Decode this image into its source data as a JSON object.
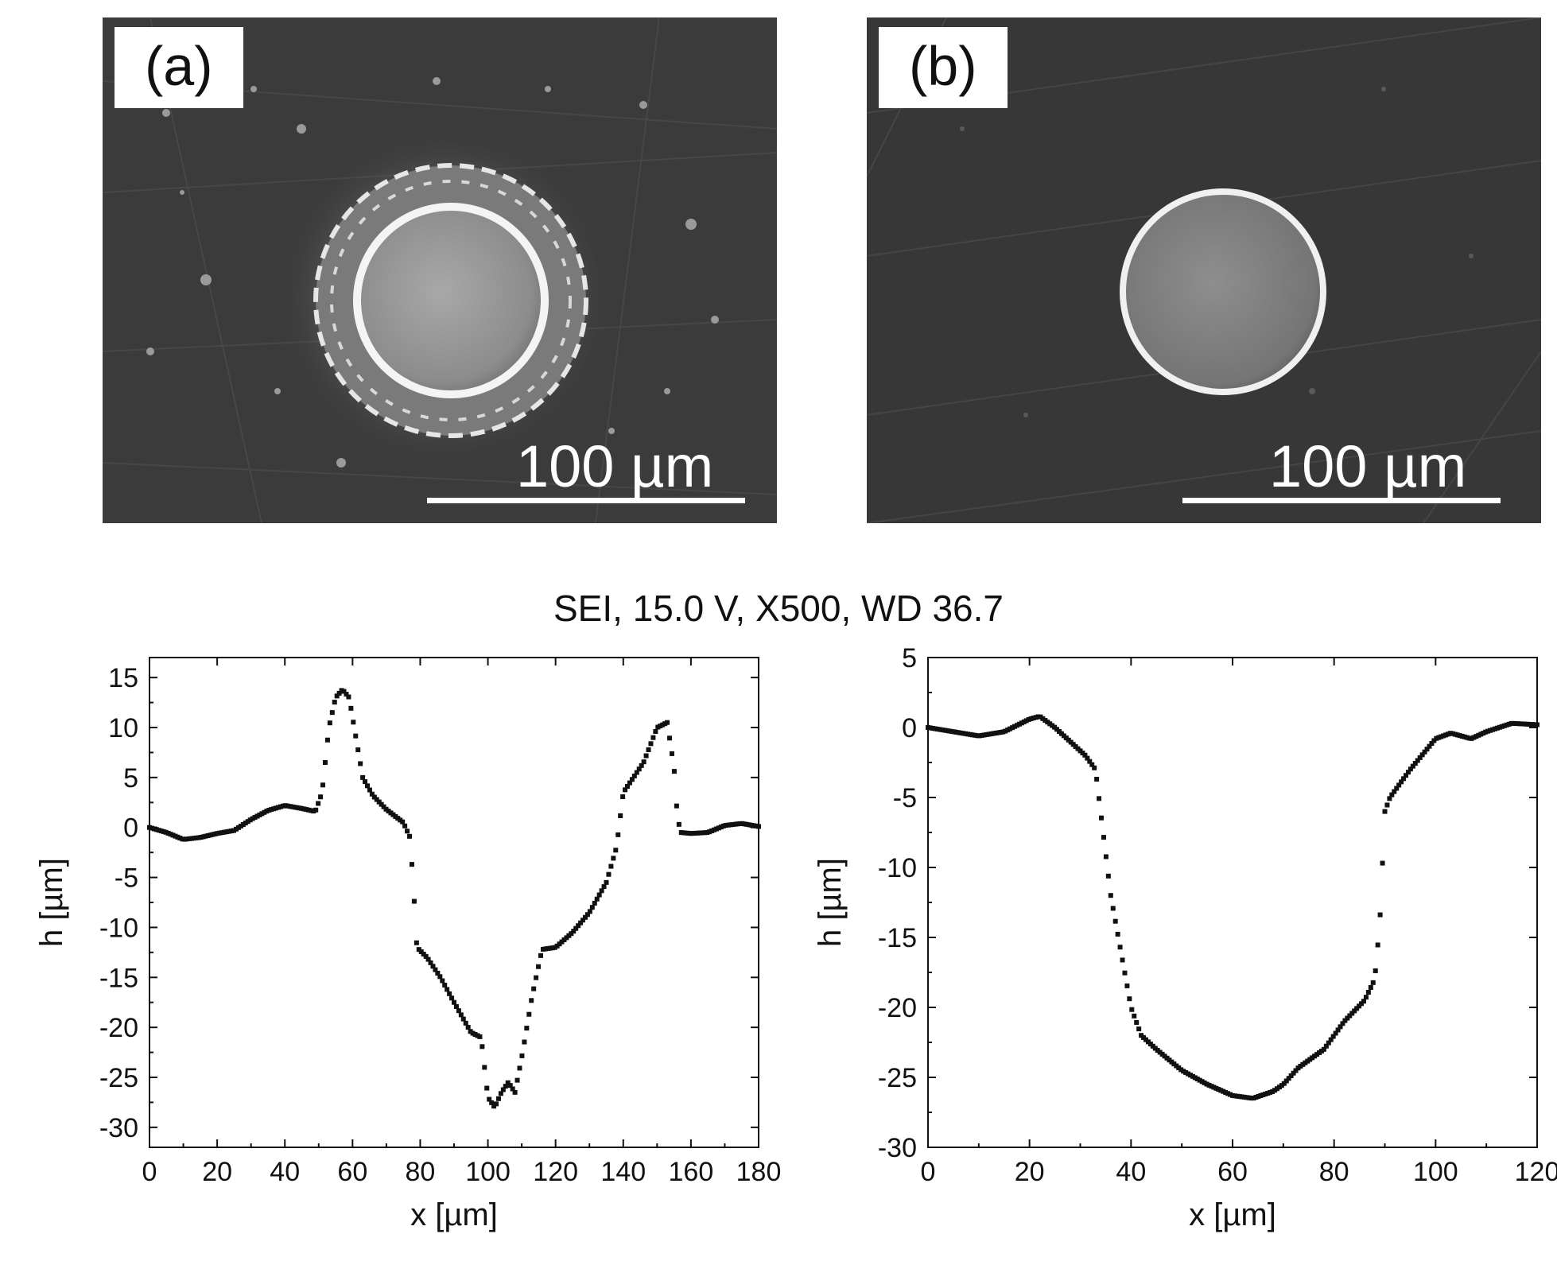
{
  "panels": {
    "a": {
      "label": "(a)",
      "scale_text": "100 µm"
    },
    "b": {
      "label": "(b)",
      "scale_text": "100 µm"
    }
  },
  "caption": "SEI, 15.0 V, X500, WD 36.7",
  "colors": {
    "marker": "#111111",
    "axis": "#111111",
    "sem_background": "#3a3a3a"
  },
  "chart_data": [
    {
      "type": "scatter",
      "title": "",
      "xlabel": "x [µm]",
      "ylabel": "h [µm]",
      "xlim": [
        0,
        180
      ],
      "ylim": [
        -32,
        17
      ],
      "xticks": [
        0,
        20,
        40,
        60,
        80,
        100,
        120,
        140,
        160,
        180
      ],
      "yticks": [
        15,
        10,
        5,
        0,
        -5,
        -10,
        -15,
        -20,
        -25,
        -30
      ],
      "profile": [
        [
          0,
          0
        ],
        [
          5,
          -0.5
        ],
        [
          10,
          -1.2
        ],
        [
          15,
          -1
        ],
        [
          20,
          -0.6
        ],
        [
          25,
          -0.3
        ],
        [
          30,
          0.8
        ],
        [
          35,
          1.7
        ],
        [
          40,
          2.2
        ],
        [
          45,
          1.9
        ],
        [
          49,
          1.6
        ],
        [
          51,
          3.5
        ],
        [
          53,
          10
        ],
        [
          55,
          13
        ],
        [
          57,
          13.8
        ],
        [
          59,
          13
        ],
        [
          61,
          9
        ],
        [
          63,
          5
        ],
        [
          66,
          3.2
        ],
        [
          70,
          1.8
        ],
        [
          75,
          0.5
        ],
        [
          77,
          -1
        ],
        [
          78,
          -6
        ],
        [
          79,
          -12
        ],
        [
          82,
          -13
        ],
        [
          86,
          -15
        ],
        [
          90,
          -17.5
        ],
        [
          95,
          -20.5
        ],
        [
          98,
          -21
        ],
        [
          100,
          -27
        ],
        [
          102,
          -28
        ],
        [
          104,
          -26.5
        ],
        [
          106,
          -25.5
        ],
        [
          108,
          -26.5
        ],
        [
          110,
          -23
        ],
        [
          113,
          -17
        ],
        [
          116,
          -12.2
        ],
        [
          120,
          -12
        ],
        [
          125,
          -10.5
        ],
        [
          130,
          -8.5
        ],
        [
          135,
          -5.5
        ],
        [
          138,
          -2
        ],
        [
          140,
          3.5
        ],
        [
          143,
          5
        ],
        [
          146,
          6.5
        ],
        [
          150,
          10
        ],
        [
          153,
          10.5
        ],
        [
          155,
          6
        ],
        [
          156,
          1
        ],
        [
          157,
          -0.5
        ],
        [
          160,
          -0.6
        ],
        [
          165,
          -0.5
        ],
        [
          170,
          0.2
        ],
        [
          175,
          0.4
        ],
        [
          180,
          0.1
        ]
      ]
    },
    {
      "type": "scatter",
      "title": "",
      "xlabel": "x [µm]",
      "ylabel": "h [µm]",
      "xlim": [
        0,
        120
      ],
      "ylim": [
        -30,
        5
      ],
      "xticks": [
        0,
        20,
        40,
        60,
        80,
        100,
        120
      ],
      "yticks": [
        5,
        0,
        -5,
        -10,
        -15,
        -20,
        -25,
        -30
      ],
      "profile": [
        [
          0,
          0
        ],
        [
          5,
          -0.3
        ],
        [
          10,
          -0.6
        ],
        [
          15,
          -0.3
        ],
        [
          20,
          0.6
        ],
        [
          22,
          0.8
        ],
        [
          25,
          0
        ],
        [
          28,
          -1
        ],
        [
          31,
          -2
        ],
        [
          33,
          -3
        ],
        [
          34,
          -6
        ],
        [
          36,
          -12
        ],
        [
          38,
          -16
        ],
        [
          40,
          -20
        ],
        [
          42,
          -22
        ],
        [
          45,
          -23
        ],
        [
          50,
          -24.5
        ],
        [
          55,
          -25.5
        ],
        [
          60,
          -26.3
        ],
        [
          64,
          -26.5
        ],
        [
          68,
          -26
        ],
        [
          70,
          -25.5
        ],
        [
          73,
          -24.3
        ],
        [
          78,
          -23
        ],
        [
          82,
          -21
        ],
        [
          86,
          -19.5
        ],
        [
          88,
          -18
        ],
        [
          89,
          -14
        ],
        [
          89.5,
          -10
        ],
        [
          90,
          -6
        ],
        [
          91,
          -5
        ],
        [
          95,
          -3
        ],
        [
          100,
          -0.8
        ],
        [
          103,
          -0.4
        ],
        [
          107,
          -0.8
        ],
        [
          110,
          -0.3
        ],
        [
          115,
          0.3
        ],
        [
          120,
          0.2
        ]
      ]
    }
  ]
}
